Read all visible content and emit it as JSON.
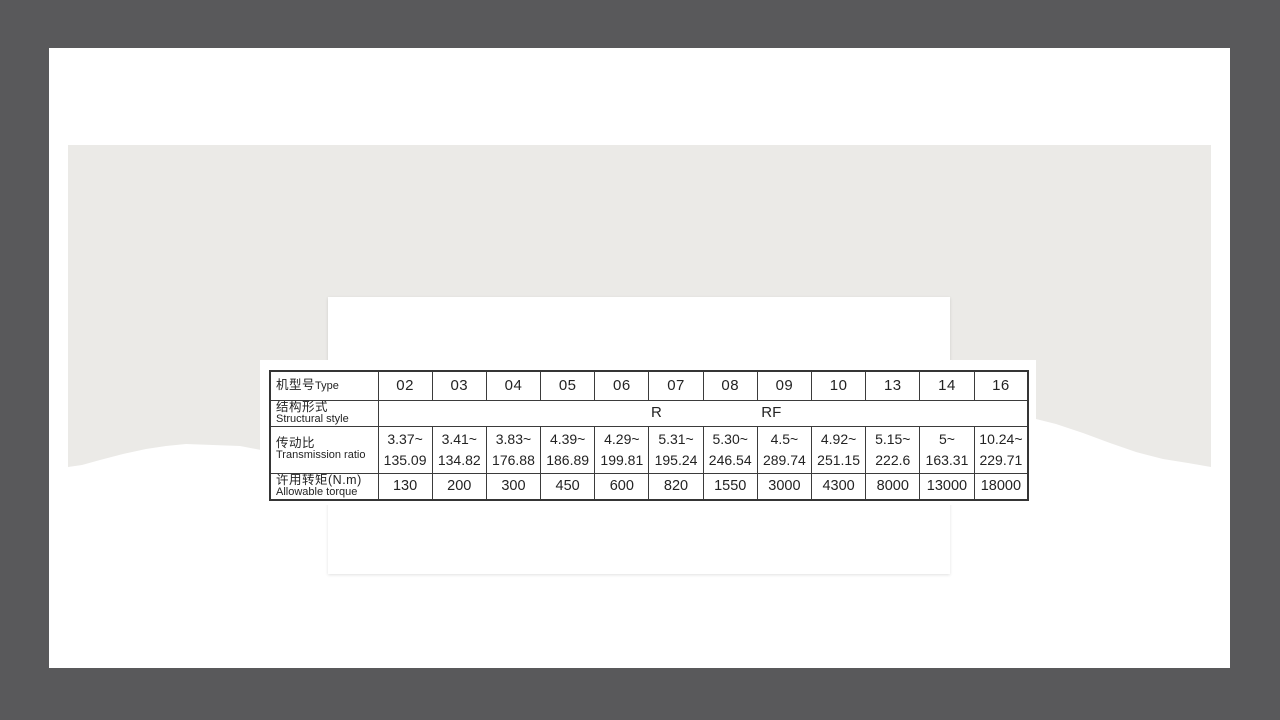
{
  "colors": {
    "background": "#59595b",
    "page": "#ffffff",
    "image_region": "#ebeae7",
    "card": "#ffffff",
    "table_border": "#3b3b3b",
    "table_text": "#232323"
  },
  "table": {
    "type_row": {
      "label_zh": "机型号",
      "label_en": "Type",
      "values": [
        "02",
        "03",
        "04",
        "05",
        "06",
        "07",
        "08",
        "09",
        "10",
        "13",
        "14",
        "16"
      ]
    },
    "structural_row": {
      "label_zh": "结构形式",
      "label_en": "Structural style",
      "r_label": "R",
      "rf_label": "RF"
    },
    "transmission_row": {
      "label_zh": "传动比",
      "label_en": "Transmission ratio",
      "values": [
        {
          "from": "3.37~",
          "to": "135.09"
        },
        {
          "from": "3.41~",
          "to": "134.82"
        },
        {
          "from": "3.83~",
          "to": "176.88"
        },
        {
          "from": "4.39~",
          "to": "186.89"
        },
        {
          "from": "4.29~",
          "to": "199.81"
        },
        {
          "from": "5.31~",
          "to": "195.24"
        },
        {
          "from": "5.30~",
          "to": "246.54"
        },
        {
          "from": "4.5~",
          "to": "289.74"
        },
        {
          "from": "4.92~",
          "to": "251.15"
        },
        {
          "from": "5.15~",
          "to": "222.6"
        },
        {
          "from": "5~",
          "to": "163.31"
        },
        {
          "from": "10.24~",
          "to": "229.71"
        }
      ]
    },
    "torque_row": {
      "label_zh": "许用转矩(N.m)",
      "label_en": "Allowable torque",
      "values": [
        "130",
        "200",
        "300",
        "450",
        "600",
        "820",
        "1550",
        "3000",
        "4300",
        "8000",
        "13000",
        "18000"
      ]
    }
  }
}
